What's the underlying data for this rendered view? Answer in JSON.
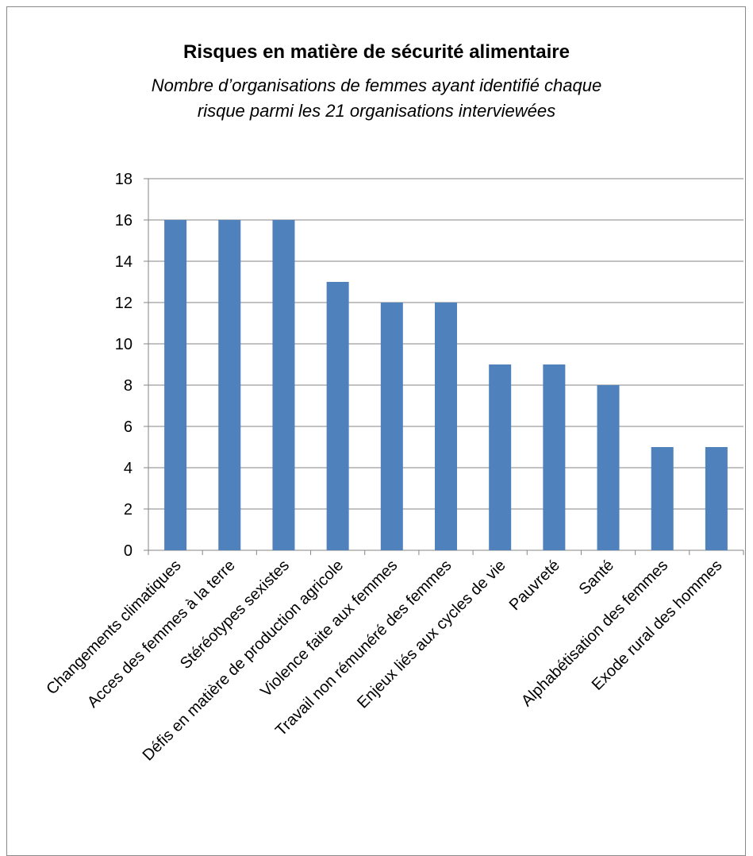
{
  "chart_data": {
    "type": "bar",
    "title": "Risques en matière de sécurité alimentaire",
    "subtitle_lines": [
      "Nombre d’organisations de femmes ayant identifié chaque",
      "risque parmi les 21 organisations interviewées"
    ],
    "categories": [
      "Changements climatiques",
      "Acces des femmes à la terre",
      "Stéréotypes sexistes",
      "Défis en matière de production agricole",
      "Violence faite aux femmes",
      "Travail non rémunéré des femmes",
      "Enjeux liés aux cycles de vie",
      "Pauvreté",
      "Santé",
      "Alphabétisation des femmes",
      "Exode rural des hommes"
    ],
    "values": [
      16,
      16,
      16,
      13,
      12,
      12,
      9,
      9,
      8,
      5,
      5
    ],
    "yticks": [
      "0",
      "2",
      "4",
      "6",
      "8",
      "10",
      "12",
      "14",
      "16",
      "18"
    ],
    "ylim": [
      0,
      18
    ],
    "grid": true,
    "legend": "none",
    "colors": {
      "bar": "#4F81BD",
      "grid": "#868686",
      "axis": "#868686"
    }
  }
}
